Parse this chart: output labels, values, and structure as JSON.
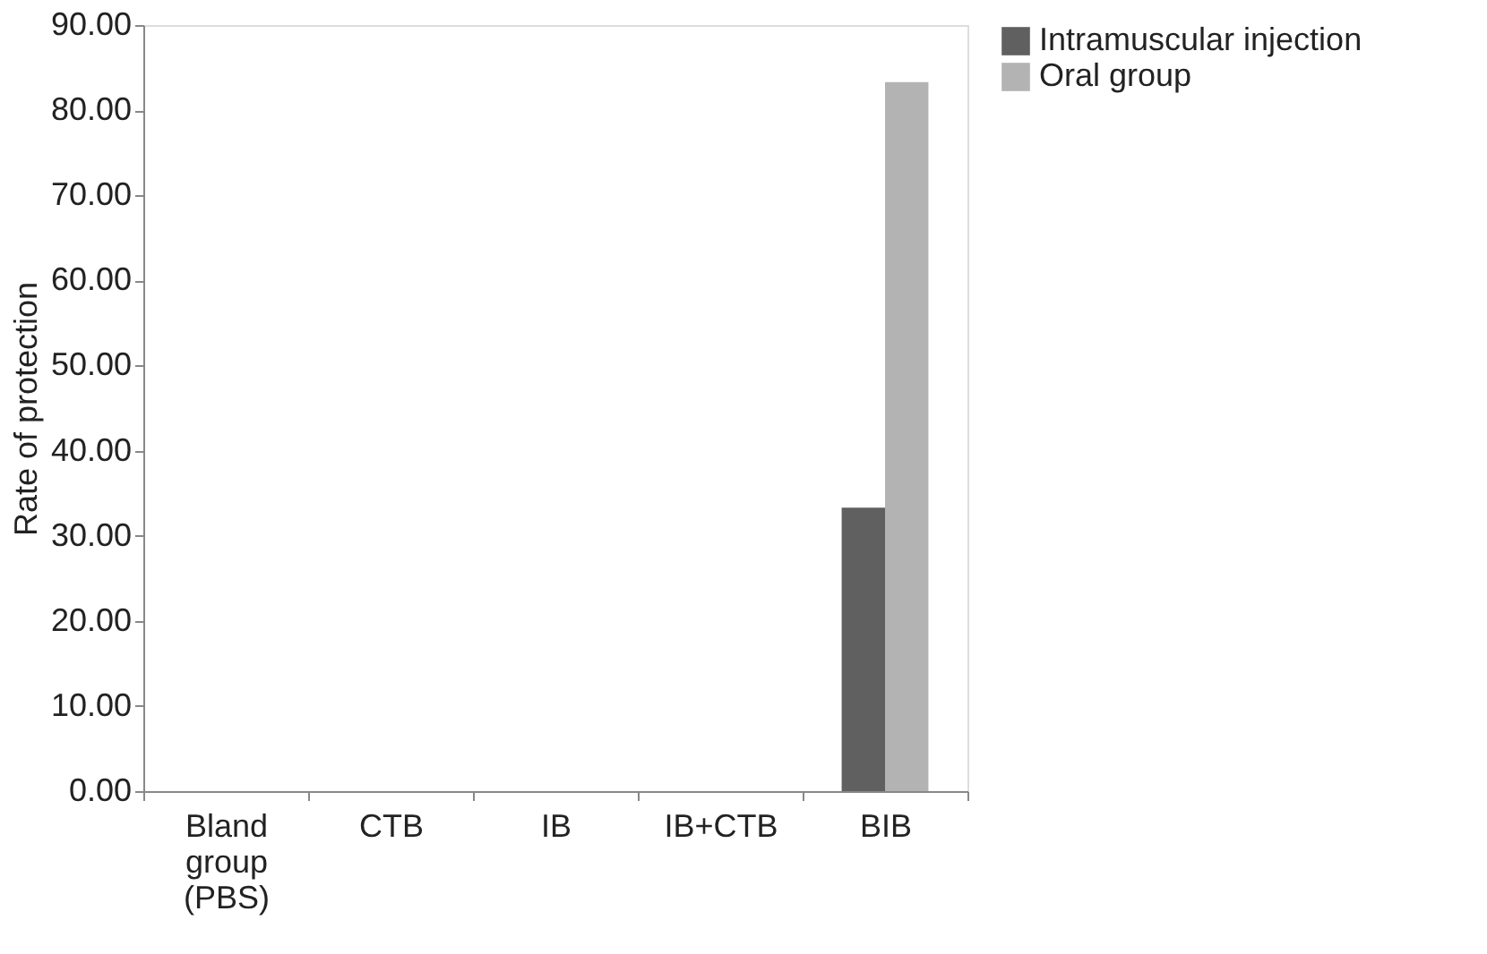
{
  "chart_data": {
    "type": "bar",
    "ylabel": "Rate of protection",
    "categories": [
      "Bland group (PBS)",
      "CTB",
      "IB",
      "IB+CTB",
      "BIB"
    ],
    "series": [
      {
        "name": "Intramuscular injection",
        "color": "#606060",
        "values": [
          0,
          0,
          0,
          0,
          33.3
        ]
      },
      {
        "name": "Oral group",
        "color": "#b3b3b3",
        "values": [
          0,
          0,
          0,
          0,
          83.3
        ]
      }
    ],
    "ylim": [
      0,
      90
    ],
    "yticks": [
      {
        "value": 0,
        "label": "0.00"
      },
      {
        "value": 10,
        "label": "10.00"
      },
      {
        "value": 20,
        "label": "20.00"
      },
      {
        "value": 30,
        "label": "30.00"
      },
      {
        "value": 40,
        "label": "40.00"
      },
      {
        "value": 50,
        "label": "50.00"
      },
      {
        "value": 60,
        "label": "60.00"
      },
      {
        "value": 70,
        "label": "70.00"
      },
      {
        "value": 80,
        "label": "80.00"
      },
      {
        "value": 90,
        "label": "90.00"
      }
    ],
    "grid": false,
    "legend": "right"
  }
}
